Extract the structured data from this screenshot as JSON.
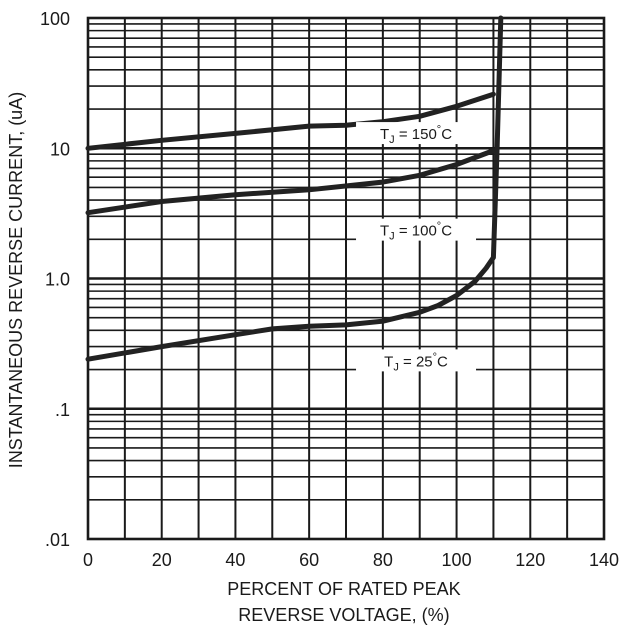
{
  "chart_data": {
    "type": "line",
    "title": "",
    "xlabel": [
      "PERCENT OF RATED PEAK",
      "REVERSE VOLTAGE, (%)"
    ],
    "ylabel": "INSTANTANEOUS REVERSE CURRENT, (uA)",
    "xlim": [
      0,
      140
    ],
    "ylim": [
      0.01,
      100
    ],
    "yscale": "log",
    "grid": true,
    "x_ticks": [
      0,
      20,
      40,
      60,
      80,
      100,
      120,
      140
    ],
    "x_tick_labels": [
      "0",
      "20",
      "40",
      "60",
      "80",
      "100",
      "120",
      "140"
    ],
    "y_ticks": [
      100,
      10,
      1,
      0.1,
      0.01
    ],
    "y_tick_labels": [
      "100",
      "10",
      "1.0",
      ".1",
      ".01"
    ],
    "series": [
      {
        "name": "TJ = 150°C",
        "x": [
          0,
          20,
          40,
          60,
          70,
          80,
          90,
          100,
          110
        ],
        "y": [
          10,
          11.5,
          13,
          14.8,
          15,
          16,
          17.6,
          21,
          26
        ]
      },
      {
        "name": "TJ = 100°C",
        "x": [
          0,
          20,
          40,
          60,
          80,
          90,
          100,
          110
        ],
        "y": [
          3.2,
          3.9,
          4.4,
          4.8,
          5.5,
          6.2,
          7.5,
          9.6
        ]
      },
      {
        "name": "TJ = 25°C",
        "x": [
          0,
          20,
          40,
          50,
          60,
          70,
          80,
          90,
          95,
          100,
          105,
          108,
          110,
          111,
          112
        ],
        "y": [
          0.24,
          0.3,
          0.37,
          0.41,
          0.43,
          0.44,
          0.47,
          0.55,
          0.62,
          0.74,
          0.95,
          1.2,
          1.45,
          10,
          100
        ]
      }
    ],
    "annotations": [
      {
        "text": "T",
        "sub": "J",
        "rest": " = 150",
        "deg": "°",
        "unit": "C",
        "x": 89,
        "y": 12.4
      },
      {
        "text": "T",
        "sub": "J",
        "rest": " = 100",
        "deg": "°",
        "unit": "C",
        "x": 89,
        "y": 2.25
      },
      {
        "text": "T",
        "sub": "J",
        "rest": " = 25",
        "deg": "°",
        "unit": "C",
        "x": 89,
        "y": 0.223
      }
    ]
  }
}
